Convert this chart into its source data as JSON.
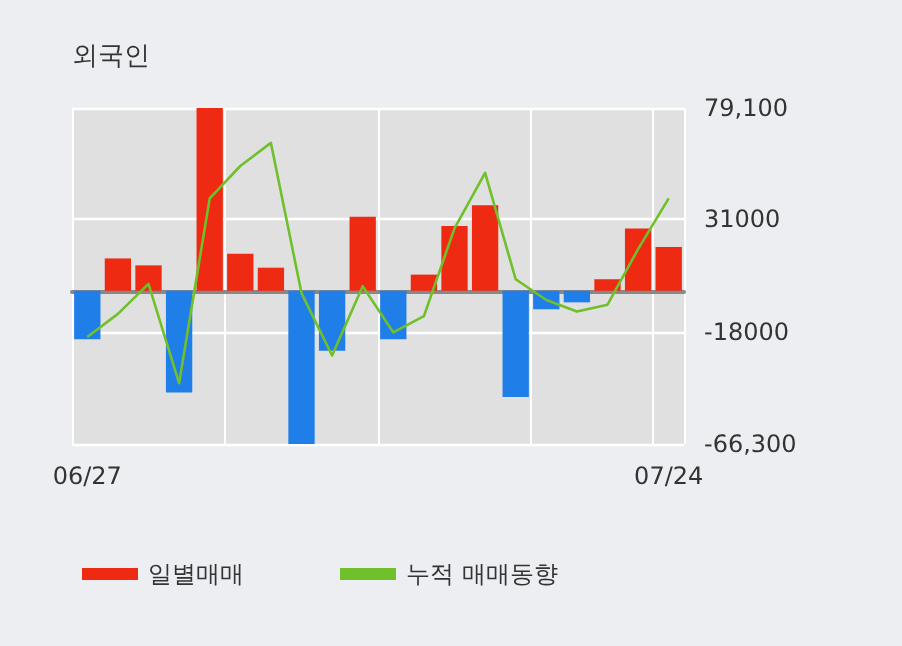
{
  "chart_data": {
    "type": "bar",
    "title": "외국인",
    "categories": [
      "06/27",
      null,
      null,
      null,
      null,
      null,
      null,
      null,
      null,
      null,
      null,
      null,
      null,
      null,
      null,
      null,
      null,
      null,
      null,
      "07/24"
    ],
    "series": [
      {
        "name": "일별매매",
        "color": "#ee2a12",
        "colors": [
          "#1f7ee8",
          "#ee2a12",
          "#ee2a12",
          "#1f7ee8",
          "#ee2a12",
          "#ee2a12",
          "#ee2a12",
          "#1f7ee8",
          "#1f7ee8",
          "#ee2a12",
          "#1f7ee8",
          "#ee2a12",
          "#ee2a12",
          "#ee2a12",
          "#1f7ee8",
          "#1f7ee8",
          "#1f7ee8",
          "#ee2a12",
          "#ee2a12",
          "#ee2a12"
        ],
        "values": [
          -21000,
          14000,
          11000,
          -44000,
          79100,
          16000,
          10000,
          -66300,
          -26000,
          32000,
          -21000,
          7000,
          28000,
          37000,
          -46000,
          -8000,
          -5000,
          5000,
          27000,
          19000
        ]
      },
      {
        "name": "누적 매매동향",
        "type": "line",
        "color": "#6fc02a",
        "values": [
          -20000,
          -10000,
          3000,
          -40000,
          40000,
          54000,
          64000,
          -1000,
          -28000,
          2000,
          -18000,
          -11000,
          27000,
          51000,
          5000,
          -4000,
          -9000,
          -6000,
          18000,
          40000
        ]
      }
    ],
    "ylim": [
      -66300,
      79100
    ],
    "yticks": [
      {
        "value": 79100,
        "label": "79,100"
      },
      31000,
      -18000,
      {
        "value": -66300,
        "label": "-66,300"
      }
    ],
    "grid": true,
    "legend": "bottom",
    "marker": "none"
  }
}
